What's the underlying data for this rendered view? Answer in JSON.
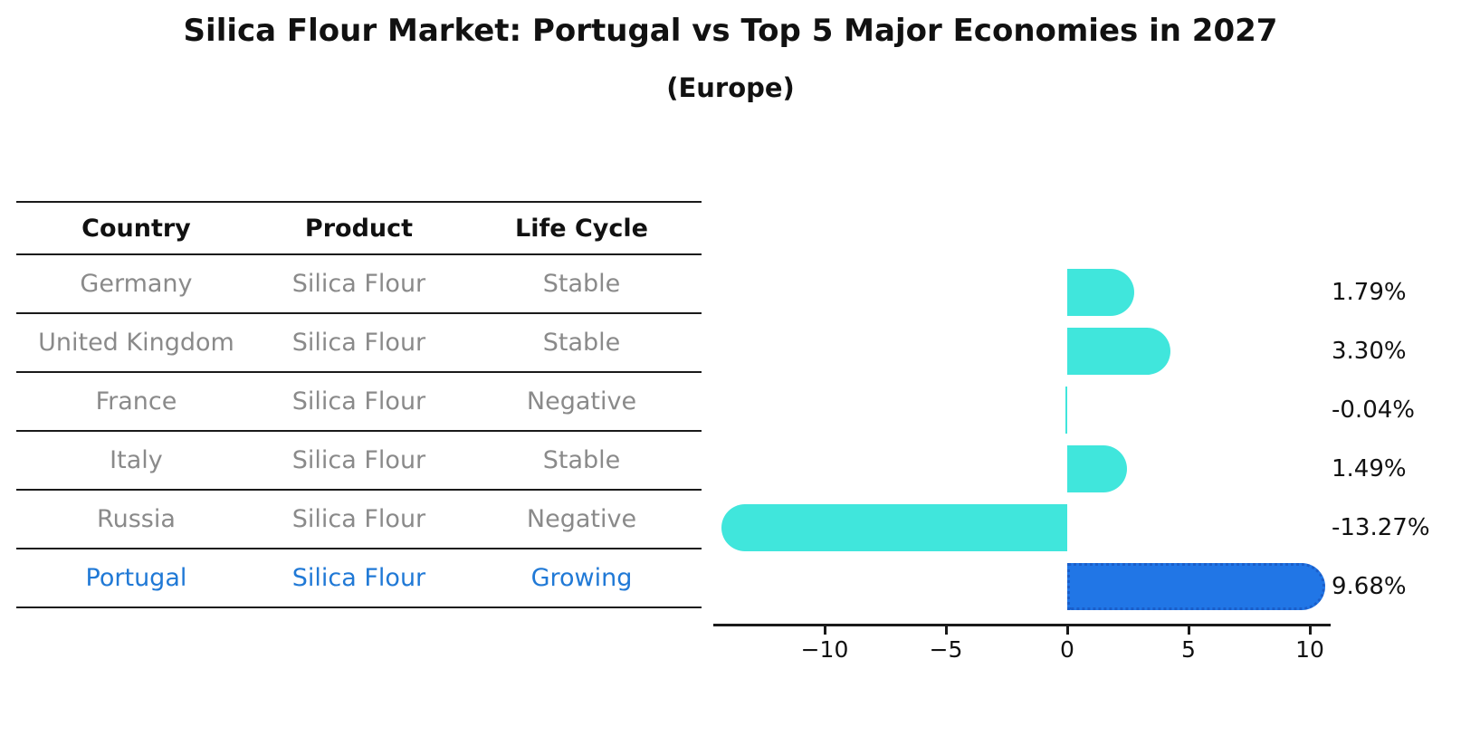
{
  "title": "Silica Flour Market: Portugal vs Top 5 Major Economies in 2027",
  "subtitle": "(Europe)",
  "table": {
    "headers": [
      "Country",
      "Product",
      "Life Cycle"
    ],
    "rows": [
      {
        "country": "Germany",
        "product": "Silica Flour",
        "life_cycle": "Stable",
        "highlight": false
      },
      {
        "country": "United Kingdom",
        "product": "Silica Flour",
        "life_cycle": "Stable",
        "highlight": false
      },
      {
        "country": "France",
        "product": "Silica Flour",
        "life_cycle": "Negative",
        "highlight": false
      },
      {
        "country": "Italy",
        "product": "Silica Flour",
        "life_cycle": "Stable",
        "highlight": false
      },
      {
        "country": "Russia",
        "product": "Silica Flour",
        "life_cycle": "Negative",
        "highlight": false
      },
      {
        "country": "Portugal",
        "product": "Silica Flour",
        "life_cycle": "Growing",
        "highlight": true
      }
    ]
  },
  "chart_data": {
    "type": "bar",
    "orientation": "horizontal",
    "title": "Silica Flour Market: Portugal vs Top 5 Major Economies in 2027 (Europe)",
    "categories": [
      "Germany",
      "United Kingdom",
      "France",
      "Italy",
      "Russia",
      "Portugal"
    ],
    "values": [
      1.79,
      3.3,
      -0.04,
      1.49,
      -13.27,
      9.68
    ],
    "value_labels": [
      "1.79%",
      "3.30%",
      "-0.04%",
      "1.49%",
      "-13.27%",
      "9.68%"
    ],
    "unit": "%",
    "highlight_index": 5,
    "x_ticks": [
      {
        "value": -10,
        "label": "−10"
      },
      {
        "value": -5,
        "label": "−5"
      },
      {
        "value": 0,
        "label": "0"
      },
      {
        "value": 5,
        "label": "5"
      },
      {
        "value": 10,
        "label": "10"
      }
    ],
    "xlim": [
      -14.6,
      10.9
    ],
    "grid": false,
    "legend": null,
    "bar_color": "#40E6DC",
    "highlight_bar_color": "#2176E6",
    "highlight_bar_border": "#1B5EC9"
  },
  "colors": {
    "text_gray": "#8A8A8A",
    "highlight_text": "#2079D6",
    "line_black": "#1A1A1A"
  }
}
